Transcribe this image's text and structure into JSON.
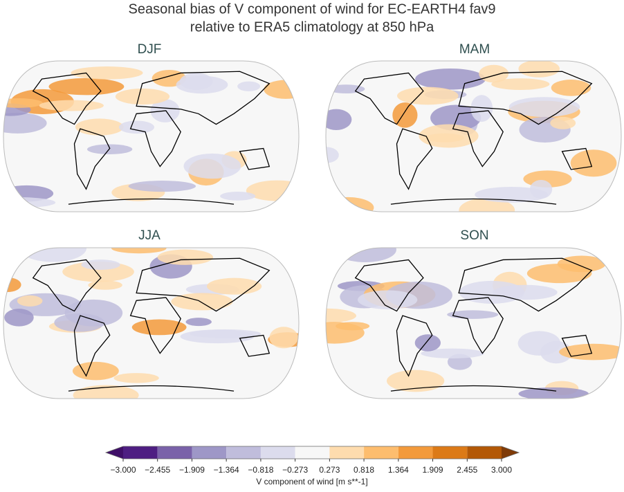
{
  "title": [
    "Seasonal bias of V component of wind for EC-EARTH4 fav9",
    "relative to ERA5 climatology at 850 hPa"
  ],
  "panels": [
    {
      "title": "DJF"
    },
    {
      "title": "MAM"
    },
    {
      "title": "JJA"
    },
    {
      "title": "SON"
    }
  ],
  "colorbar": {
    "label": "V component of wind [m s**-1]",
    "extend": "both",
    "under_color": "#3f0f68",
    "over_color": "#7f3b08",
    "colors": [
      "#4e1e82",
      "#7a62a9",
      "#9e97c7",
      "#c0bddc",
      "#dcdced",
      "#f7f7f7",
      "#fedcae",
      "#fdbd6e",
      "#f39a3b",
      "#dc7a17",
      "#b35806"
    ],
    "ticks": [
      {
        "value": -3,
        "label": "−3.000"
      },
      {
        "value": -2.455,
        "label": "−2.455"
      },
      {
        "value": -1.909,
        "label": "−1.909"
      },
      {
        "value": -1.364,
        "label": "−1.364"
      },
      {
        "value": -0.818,
        "label": "−0.818"
      },
      {
        "value": -0.273,
        "label": "−0.273"
      },
      {
        "value": 0.273,
        "label": "0.273"
      },
      {
        "value": 0.818,
        "label": "0.818"
      },
      {
        "value": 1.364,
        "label": "1.364"
      },
      {
        "value": 1.909,
        "label": "1.909"
      },
      {
        "value": 2.455,
        "label": "2.455"
      },
      {
        "value": 3,
        "label": "3.000"
      }
    ]
  }
}
